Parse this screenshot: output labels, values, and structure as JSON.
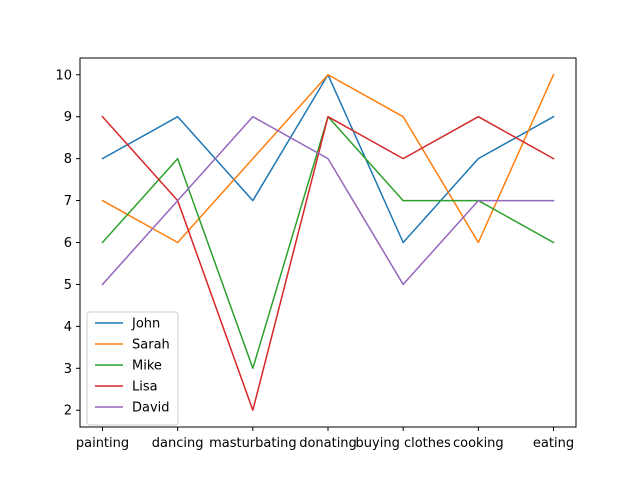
{
  "chart_data": {
    "type": "line",
    "title": "",
    "xlabel": "",
    "ylabel": "",
    "categories": [
      "painting",
      "dancing",
      "masturbating",
      "donating",
      "buying clothes",
      "cooking",
      "eating"
    ],
    "ylim": [
      1.6,
      10.4
    ],
    "yticks": [
      2,
      3,
      4,
      5,
      6,
      7,
      8,
      9,
      10
    ],
    "grid": false,
    "legend": "lower-left",
    "series": [
      {
        "name": "John",
        "color": "#1f77b4",
        "values": [
          8,
          9,
          7,
          10,
          6,
          8,
          9
        ]
      },
      {
        "name": "Sarah",
        "color": "#ff7f0e",
        "values": [
          7,
          6,
          8,
          10,
          9,
          6,
          10
        ]
      },
      {
        "name": "Mike",
        "color": "#2ca02c",
        "values": [
          6,
          8,
          3,
          9,
          7,
          7,
          6
        ]
      },
      {
        "name": "Lisa",
        "color": "#d62728",
        "values": [
          9,
          7,
          2,
          9,
          8,
          9,
          8
        ]
      },
      {
        "name": "David",
        "color": "#9467bd",
        "values": [
          5,
          7,
          9,
          8,
          5,
          7,
          7
        ]
      }
    ]
  }
}
